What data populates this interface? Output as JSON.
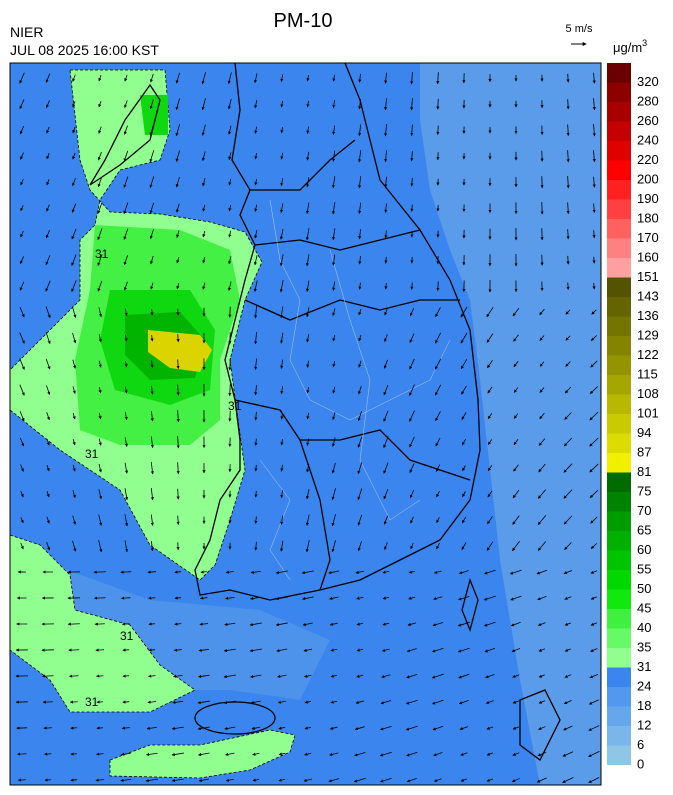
{
  "header": {
    "source": "NIER",
    "title": "PM-10",
    "timestamp": "JUL 08 2025 16:00 KST"
  },
  "wind_scale": {
    "label": "5 m/s"
  },
  "colorbar": {
    "unit": "μg/m",
    "unit_exponent": "3",
    "levels": [
      0,
      6,
      12,
      18,
      24,
      31,
      35,
      40,
      45,
      50,
      55,
      60,
      65,
      70,
      75,
      81,
      87,
      94,
      101,
      108,
      115,
      122,
      129,
      136,
      143,
      151,
      160,
      170,
      180,
      190,
      200,
      220,
      240,
      260,
      280,
      320
    ],
    "colors": [
      "#8ec6e6",
      "#7ab6ea",
      "#66a6ec",
      "#5298ee",
      "#3a86ee",
      "#90ff90",
      "#66fa66",
      "#40f040",
      "#10e810",
      "#00d800",
      "#00c400",
      "#00b000",
      "#009c00",
      "#008400",
      "#006c00",
      "#f0f000",
      "#dcdc00",
      "#caca00",
      "#b8b800",
      "#a6a600",
      "#949400",
      "#848400",
      "#747400",
      "#646400",
      "#545400",
      "#ffa0a0",
      "#ff8080",
      "#ff6060",
      "#ff4040",
      "#ff2020",
      "#ff0000",
      "#e00000",
      "#c40000",
      "#a80000",
      "#8c0000",
      "#6a0000"
    ]
  },
  "contour_labels": [
    "31",
    "31",
    "31",
    "31",
    "31"
  ]
}
